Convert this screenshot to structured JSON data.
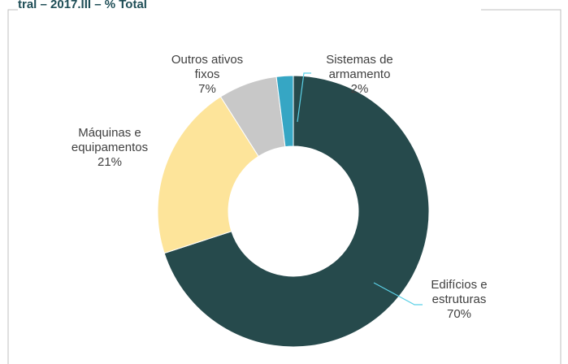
{
  "chart_data": {
    "type": "donut",
    "title": "tral – 2017.III – % Total",
    "categories": [
      "Edifícios e estruturas",
      "Máquinas e equipamentos",
      "Outros ativos fixos",
      "Sistemas de armamento"
    ],
    "values": [
      70,
      21,
      7,
      2
    ],
    "value_labels": [
      "70%",
      "21%",
      "7%",
      "2%"
    ],
    "colors": [
      "#264a4c",
      "#fde49a",
      "#c8c8c8",
      "#36a6c4"
    ]
  }
}
